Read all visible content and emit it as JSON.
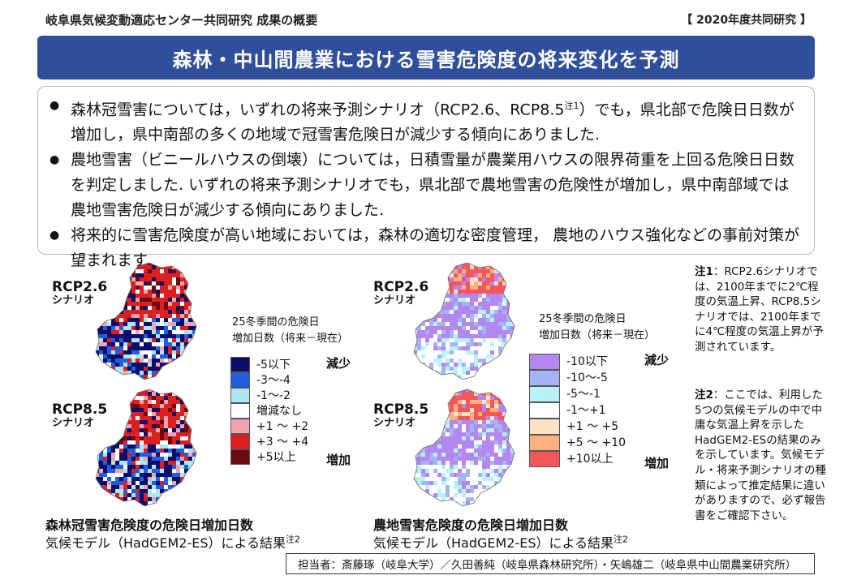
{
  "header": {
    "title": "岐阜県気候変動適応センター共同研究 成果の概要",
    "year_badge": "【 2020年度共同研究 】"
  },
  "banner": {
    "title": "森林・中山間農業における雪害危険度の将来変化を予測"
  },
  "summary": {
    "bullet_char": "●",
    "b1_pre": "森林冠雪害については，いずれの将来予測シナリオ（RCP2.6、RCP8.5",
    "b1_sup": "注1",
    "b1_post": "）でも，県北部で危険日日数が増加し，県中南部の多くの地域で冠雪害危険日が減少する傾向にありました.",
    "b2": "農地雪害（ビニールハウスの倒壊）については，日積雪量が農業用ハウスの限界荷重を上回る危険日日数を判定しました. いずれの将来予測シナリオでも，県北部で農地雪害の危険性が増加し，県中南部域では農地雪害危険日が減少する傾向にありました.",
    "b3": "将来的に雪害危険度が高い地域においては，森林の適切な密度管理， 農地のハウス強化などの事前対策が望まれます."
  },
  "forest": {
    "rcp26": {
      "name": "RCP2.6",
      "sub": "シナリオ"
    },
    "rcp85": {
      "name": "RCP8.5",
      "sub": "シナリオ"
    },
    "legend_title_1": "25冬季間の危険日",
    "legend_title_2": "増加日数（将来－現在）",
    "legend": [
      {
        "label": "-5以下",
        "color": "#0d0d6b"
      },
      {
        "label": "-3～-4",
        "color": "#1f5fe0"
      },
      {
        "label": "-1～-2",
        "color": "#aee6f0"
      },
      {
        "label": "増減なし",
        "color": "#ffffff"
      },
      {
        "label": "+1 ～ +2",
        "color": "#f0a4ae"
      },
      {
        "label": "+3 ～ +4",
        "color": "#dc1f1f"
      },
      {
        "label": "+5以上",
        "color": "#6b0a12"
      }
    ],
    "decrease": "減少",
    "increase": "増加",
    "caption_title": "森林冠雪害危険度の危険日増加日数",
    "caption_sub": "気候モデル（HadGEM2-ES）による結果",
    "caption_sup": "注2"
  },
  "farm": {
    "rcp26": {
      "name": "RCP2.6",
      "sub": "シナリオ"
    },
    "rcp85": {
      "name": "RCP8.5",
      "sub": "シナリオ"
    },
    "legend_title_1": "25冬季間の危険日",
    "legend_title_2": "増加日数（将来－現在）",
    "legend": [
      {
        "label": "-10以下",
        "color": "#b486f0"
      },
      {
        "label": "-10～-5",
        "color": "#a4b4f2"
      },
      {
        "label": "-5～-1",
        "color": "#b6f2f6"
      },
      {
        "label": "-1～+1",
        "color": "#ffffff"
      },
      {
        "label": "+1 ～ +5",
        "color": "#fde2c6"
      },
      {
        "label": "+5 ～ +10",
        "color": "#fbb27e"
      },
      {
        "label": "+10以上",
        "color": "#f6555a"
      }
    ],
    "decrease": "減少",
    "increase": "増加",
    "caption_title": "農地雪害危険度の危険日増加日数",
    "caption_sub": "気候モデル（HadGEM2-ES）による結果",
    "caption_sup": "注2"
  },
  "notes": {
    "n1_head": "注1",
    "n1_body": "：RCP2.6シナリオでは、2100年までに2℃程度の気温上昇、RCP8.5シナリオでは、2100年までに4℃程度の気温上昇が予測されています。",
    "n2_head": "注2",
    "n2_body": "：ここでは、利用した5つの気候モデルの中で中庸な気温上昇を示したHadGEM2-ESの結果のみを示しています。気候モデル・将来予測シナリオの種類によって推定結果に違いがありますので、必ず報告書をご確認下さい。"
  },
  "footer": {
    "text": "担当者：斎藤琢（岐阜大学）／久田善純（岐阜県森林研究所）・矢嶋雄二（岐阜県中山間農業研究所）"
  }
}
